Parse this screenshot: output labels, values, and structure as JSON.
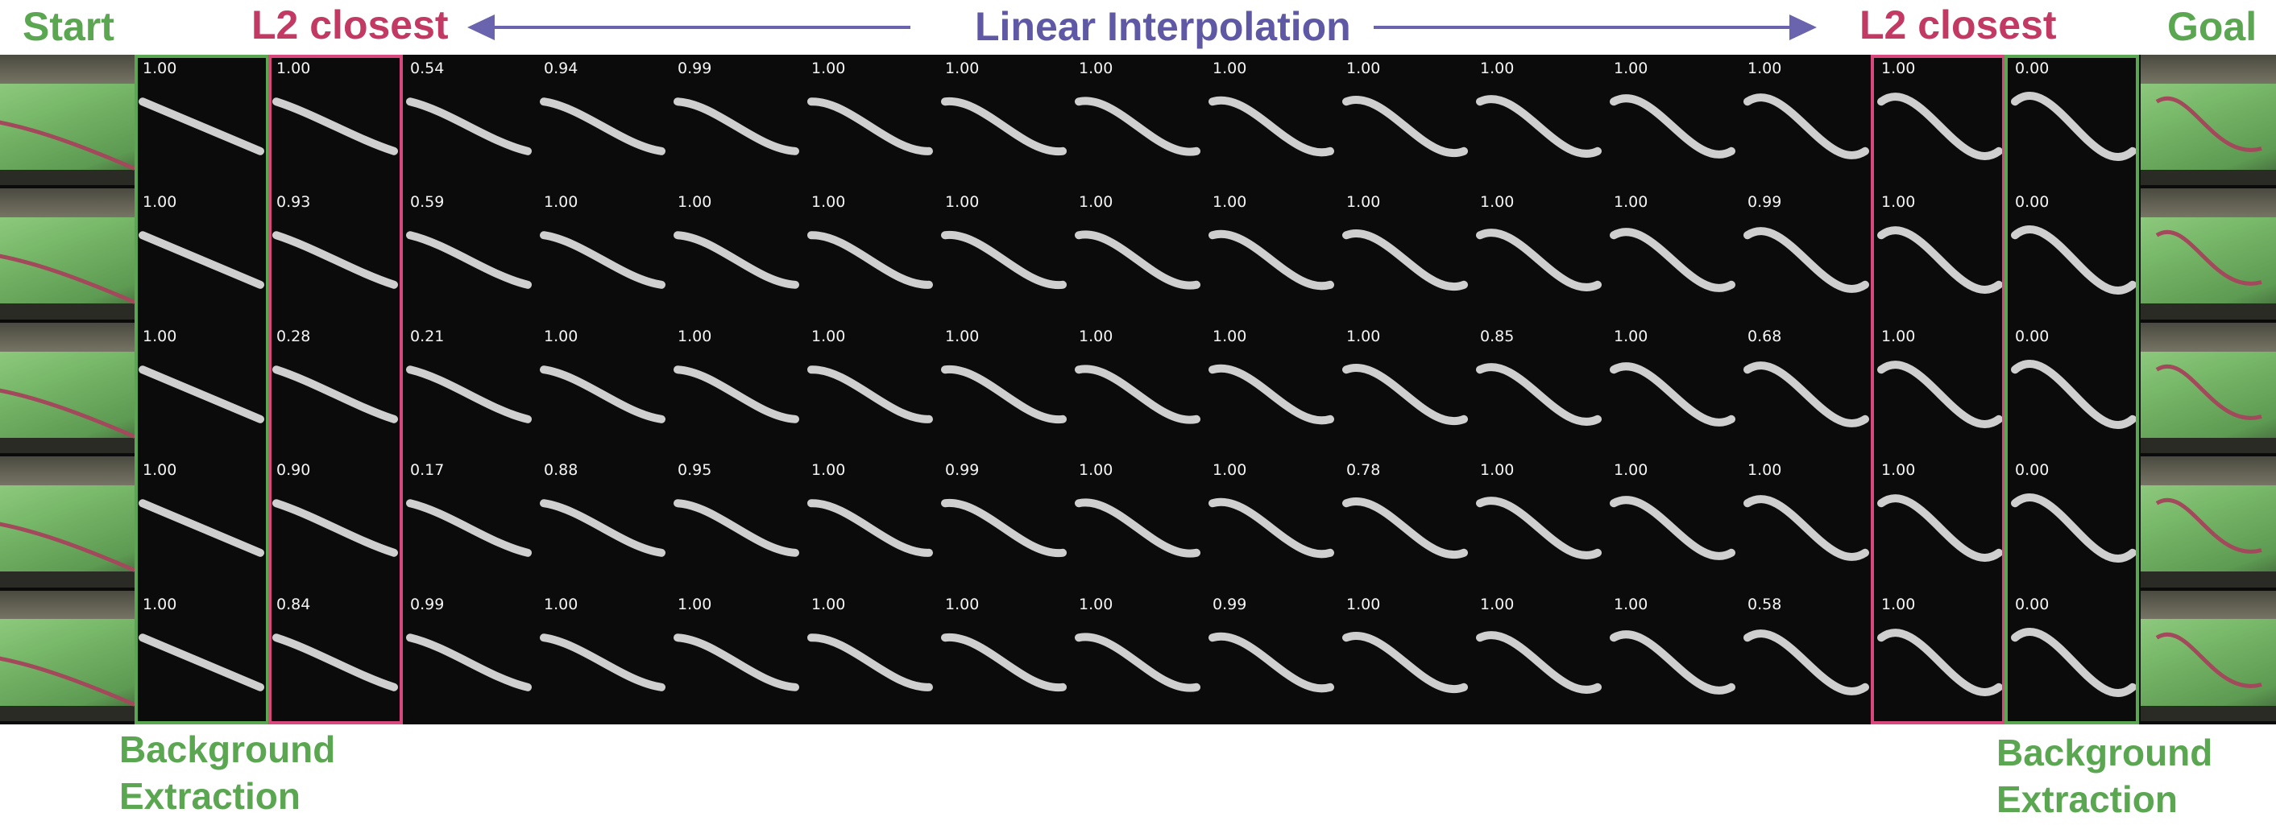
{
  "header": {
    "start": "Start",
    "goal": "Goal",
    "l2_left": "L2 closest",
    "l2_right": "L2 closest",
    "interp": "Linear Interpolation"
  },
  "footer": {
    "bg_left": [
      "Background",
      "Extraction"
    ],
    "bg_right": [
      "Background",
      "Extraction"
    ]
  },
  "colors": {
    "green": "#5aa651",
    "red": "#d9487c",
    "purple": "#5f58a5",
    "background": "#0b0b0b"
  },
  "rows": [
    {
      "scores": [
        "1.00",
        "1.00",
        "0.54",
        "0.94",
        "0.99",
        "1.00",
        "1.00",
        "1.00",
        "1.00",
        "1.00",
        "1.00",
        "1.00",
        "1.00",
        "1.00",
        "0.00"
      ]
    },
    {
      "scores": [
        "1.00",
        "0.93",
        "0.59",
        "1.00",
        "1.00",
        "1.00",
        "1.00",
        "1.00",
        "1.00",
        "1.00",
        "1.00",
        "1.00",
        "0.99",
        "1.00",
        "0.00"
      ]
    },
    {
      "scores": [
        "1.00",
        "0.28",
        "0.21",
        "1.00",
        "1.00",
        "1.00",
        "1.00",
        "1.00",
        "1.00",
        "1.00",
        "0.85",
        "1.00",
        "0.68",
        "1.00",
        "0.00"
      ]
    },
    {
      "scores": [
        "1.00",
        "0.90",
        "0.17",
        "0.88",
        "0.95",
        "1.00",
        "0.99",
        "1.00",
        "1.00",
        "0.78",
        "1.00",
        "1.00",
        "1.00",
        "1.00",
        "0.00"
      ]
    },
    {
      "scores": [
        "1.00",
        "0.84",
        "0.99",
        "1.00",
        "1.00",
        "1.00",
        "1.00",
        "1.00",
        "0.99",
        "1.00",
        "1.00",
        "1.00",
        "0.58",
        "1.00",
        "0.00"
      ]
    }
  ]
}
